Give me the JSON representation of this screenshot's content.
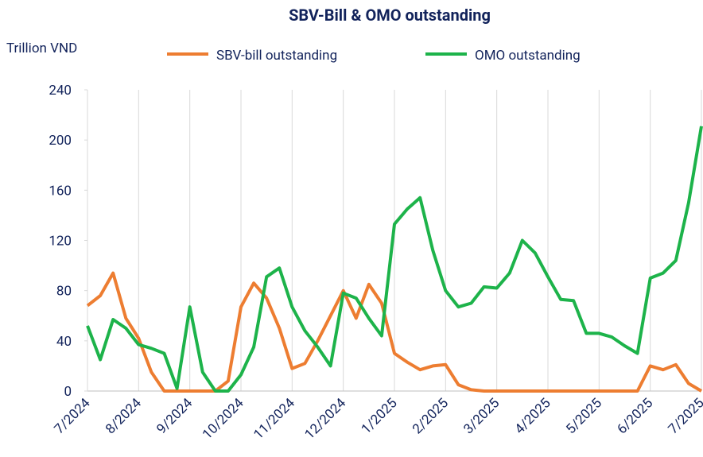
{
  "chart_data": {
    "type": "line",
    "title": "SBV-Bill & OMO outstanding",
    "y_label": "Trillion VND",
    "categories": [
      "7/2024",
      null,
      null,
      null,
      "8/2024",
      null,
      null,
      null,
      "9/2024",
      null,
      null,
      null,
      "10/2024",
      null,
      null,
      null,
      "11/2024",
      null,
      null,
      null,
      "12/2024",
      null,
      null,
      null,
      "1/2025",
      null,
      null,
      null,
      "2/2025",
      null,
      null,
      null,
      "3/2025",
      null,
      null,
      null,
      "4/2025",
      null,
      null,
      null,
      "5/2025",
      null,
      null,
      null,
      "6/2025",
      null,
      null,
      null,
      "7/2025"
    ],
    "series": [
      {
        "name": "SBV-bill outstanding",
        "color": "#ed7d31",
        "values": [
          68,
          76,
          94,
          58,
          42,
          15,
          0,
          0,
          0,
          0,
          0,
          8,
          67,
          86,
          74,
          50,
          18,
          22,
          40,
          60,
          80,
          58,
          85,
          70,
          30,
          23,
          17,
          20,
          21,
          5,
          1,
          0,
          0,
          0,
          0,
          0,
          0,
          0,
          0,
          0,
          0,
          0,
          0,
          0,
          20,
          17,
          21,
          6,
          0
        ]
      },
      {
        "name": "OMO outstanding",
        "color": "#1db34a",
        "values": [
          52,
          25,
          57,
          50,
          37,
          34,
          30,
          2,
          67,
          15,
          0,
          0,
          13,
          35,
          91,
          98,
          67,
          48,
          35,
          20,
          78,
          74,
          58,
          44,
          133,
          145,
          154,
          112,
          80,
          67,
          70,
          83,
          82,
          94,
          120,
          110,
          91,
          73,
          72,
          46,
          46,
          43,
          36,
          30,
          90,
          94,
          104,
          150,
          211
        ]
      }
    ],
    "ylim": [
      0,
      240
    ],
    "yticks": [
      0,
      40,
      80,
      120,
      160,
      200,
      240
    ],
    "grid": true
  }
}
